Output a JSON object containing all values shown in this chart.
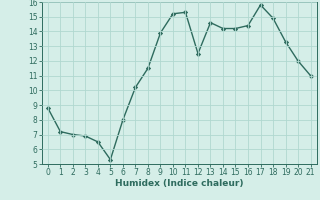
{
  "xlabel": "Humidex (Indice chaleur)",
  "x": [
    0,
    1,
    2,
    3,
    4,
    5,
    6,
    7,
    8,
    9,
    10,
    11,
    12,
    13,
    14,
    15,
    16,
    17,
    18,
    19,
    20,
    21
  ],
  "y": [
    8.8,
    7.2,
    7.0,
    6.9,
    6.5,
    5.3,
    8.0,
    10.2,
    11.5,
    13.9,
    15.2,
    15.3,
    12.5,
    14.6,
    14.2,
    14.2,
    14.4,
    15.8,
    14.9,
    13.3,
    12.0,
    11.0
  ],
  "line_color": "#2e6b5e",
  "marker": "D",
  "marker_size": 2.2,
  "bg_color": "#d5eee8",
  "grid_color": "#b0d8d0",
  "ylim": [
    5,
    16
  ],
  "xlim": [
    -0.5,
    21.5
  ],
  "yticks": [
    5,
    6,
    7,
    8,
    9,
    10,
    11,
    12,
    13,
    14,
    15,
    16
  ],
  "xticks": [
    0,
    1,
    2,
    3,
    4,
    5,
    6,
    7,
    8,
    9,
    10,
    11,
    12,
    13,
    14,
    15,
    16,
    17,
    18,
    19,
    20,
    21
  ],
  "tick_fontsize": 5.5,
  "label_fontsize": 6.5,
  "line_width": 1.0
}
